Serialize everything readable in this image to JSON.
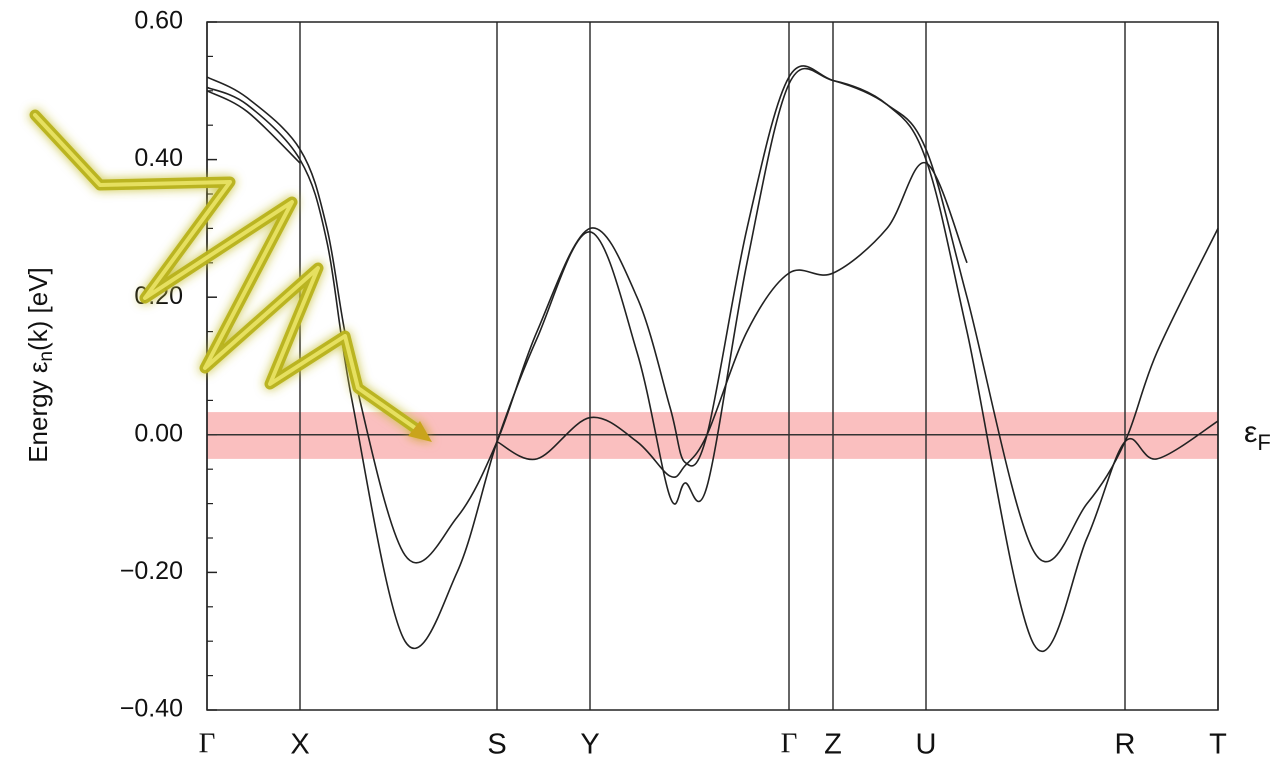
{
  "chart_data": {
    "type": "line",
    "ylabel": {
      "main": "Energy ε",
      "sub": "n",
      "rest": "(k) [eV]"
    },
    "fermi_label": {
      "main": "ε",
      "sub": "F"
    },
    "xlim": [
      0,
      1011
    ],
    "ylim": [
      -0.4,
      0.6
    ],
    "xticks": [
      {
        "value": 0,
        "label": "Γ"
      },
      {
        "value": 93,
        "label": "X"
      },
      {
        "value": 290,
        "label": "S"
      },
      {
        "value": 383,
        "label": "Y"
      },
      {
        "value": 582,
        "label": "Γ"
      },
      {
        "value": 626,
        "label": "Z"
      },
      {
        "value": 719,
        "label": "U"
      },
      {
        "value": 918,
        "label": "R"
      },
      {
        "value": 1011,
        "label": "T"
      }
    ],
    "yticks": [
      {
        "value": -0.4,
        "label": "−0.40"
      },
      {
        "value": -0.2,
        "label": "−0.20"
      },
      {
        "value": 0,
        "label": "0.00"
      },
      {
        "value": 0.2,
        "label": "0.20"
      },
      {
        "value": 0.4,
        "label": "0.40"
      },
      {
        "value": 0.6,
        "label": "0.60"
      }
    ],
    "yminorticks": [
      -0.35,
      -0.3,
      -0.25,
      -0.15,
      -0.1,
      -0.05,
      0.05,
      0.1,
      0.15,
      0.25,
      0.3,
      0.35,
      0.45,
      0.5,
      0.55
    ],
    "fermi_level": 0,
    "fermi_band": {
      "ymin": -0.035,
      "ymax": 0.033,
      "color": "#f9b4b4"
    },
    "x": [
      0,
      40,
      93,
      120,
      145,
      198,
      250,
      290,
      330,
      383,
      430,
      463,
      478,
      500,
      540,
      582,
      626,
      680,
      719,
      760,
      827,
      880,
      918,
      950,
      1011
    ],
    "series": [
      {
        "color": "#222222",
        "values": [
          0.52,
          0.49,
          0.415,
          0.3,
          0.1,
          -0.175,
          -0.12,
          -0.01,
          0.15,
          0.3,
          0.2,
          0.04,
          -0.04,
          0.0,
          0.3,
          0.52,
          0.515,
          0.48,
          0.415,
          0.2,
          -0.17,
          -0.1,
          -0.01,
          0.12,
          0.3
        ]
      },
      {
        "color": "#222222",
        "values": [
          0.505,
          0.48,
          0.4,
          0.28,
          0.05,
          -0.3,
          -0.2,
          -0.01,
          0.14,
          0.295,
          0.12,
          -0.09,
          -0.07,
          -0.075,
          0.25,
          0.51,
          0.515,
          0.48,
          0.4,
          0.15,
          -0.305,
          -0.15,
          -0.01,
          -0.035,
          0.02
        ]
      },
      {
        "color": "#222222",
        "values": [
          null,
          null,
          null,
          null,
          null,
          null,
          null,
          -0.01,
          -0.035,
          0.025,
          -0.01,
          -0.06,
          -0.045,
          0.0,
          0.15,
          0.235,
          0.235,
          0.3,
          0.395,
          0.25,
          null,
          null,
          null,
          null,
          null
        ]
      },
      {
        "color": "#222222",
        "values": [
          0.5,
          0.47,
          0.395,
          null,
          null,
          null,
          null,
          null,
          null,
          null,
          null,
          null,
          null,
          null,
          null,
          null,
          null,
          null,
          null,
          null,
          null,
          null,
          null,
          null,
          null
        ]
      }
    ]
  }
}
